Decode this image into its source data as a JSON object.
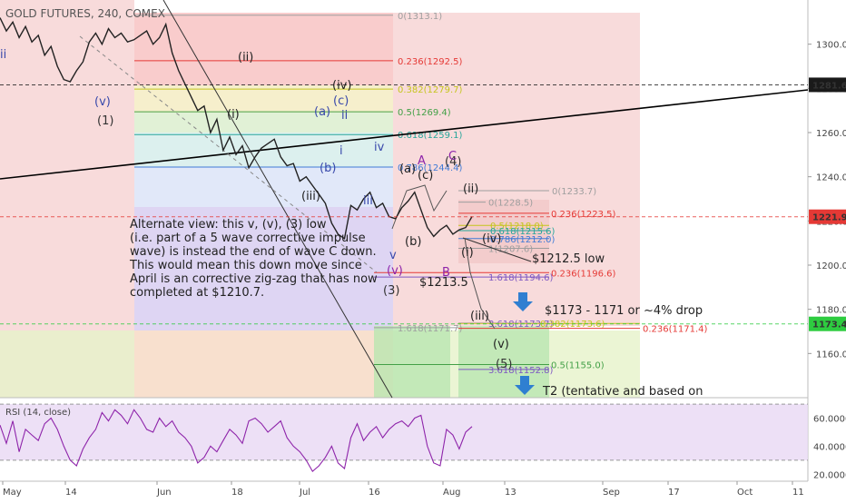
{
  "chart_data": {
    "type": "line",
    "title": "GOLD FUTURES, 240, COMEX",
    "price_axis": {
      "range": [
        1140,
        1320
      ],
      "ticks": [
        "1300.0",
        "1280.0",
        "1260.0",
        "1240.0",
        "1220.0",
        "1200.0",
        "1180.0",
        "1160.0"
      ],
      "tags": [
        {
          "value": "1281.6",
          "style": "dark"
        },
        {
          "value": "1221.9",
          "style": "red"
        },
        {
          "value": "1173.4",
          "style": "green"
        }
      ]
    },
    "time_axis": {
      "labels": [
        "May",
        "14",
        "Jun",
        "18",
        "Jul",
        "16",
        "Aug",
        "13",
        "Sep",
        "17",
        "Oct",
        "11"
      ]
    },
    "price_series": [
      1312,
      1306,
      1310,
      1303,
      1308,
      1301,
      1304,
      1295,
      1299,
      1290,
      1284,
      1283,
      1288,
      1292,
      1301,
      1305,
      1300,
      1307,
      1303,
      1305,
      1301,
      1302,
      1304,
      1306,
      1300,
      1303,
      1309,
      1296,
      1288,
      1282,
      1276,
      1270,
      1272,
      1260,
      1266,
      1252,
      1258,
      1250,
      1254,
      1244,
      1249,
      1253,
      1255,
      1257,
      1249,
      1245,
      1246,
      1238,
      1240,
      1236,
      1232,
      1228,
      1219,
      1214,
      1212,
      1227,
      1225,
      1230,
      1233,
      1226,
      1228,
      1222,
      1221,
      1226,
      1229,
      1233,
      1225,
      1217,
      1213,
      1216,
      1218,
      1214,
      1216,
      1217,
      1222
    ],
    "fib_levels": [
      {
        "label": "0(1313.1)",
        "value": 1313.1,
        "color": "#9e9e9e"
      },
      {
        "label": "0.236(1292.5)",
        "value": 1292.5,
        "color": "#e53935"
      },
      {
        "label": "0.382(1279.7)",
        "value": 1279.7,
        "color": "#c5c51d"
      },
      {
        "label": "0.5(1269.4)",
        "value": 1269.4,
        "color": "#43a047"
      },
      {
        "label": "0.618(1259.1)",
        "value": 1259.1,
        "color": "#26a69a"
      },
      {
        "label": "0.786(1244.4)",
        "value": 1244.4,
        "color": "#3f7ad6"
      },
      {
        "label": "0(1233.7)",
        "value": 1233.7,
        "color": "#9e9e9e"
      },
      {
        "label": "0(1228.5)",
        "value": 1228.5,
        "color": "#9e9e9e"
      },
      {
        "label": "0.236(1223.5)",
        "value": 1223.5,
        "color": "#e53935"
      },
      {
        "label": "0.5(1218.0)",
        "value": 1218.0,
        "color": "#c5c51d"
      },
      {
        "label": "0.618(1215.6)",
        "value": 1215.6,
        "color": "#26a69a"
      },
      {
        "label": "0.786(1212.0)",
        "value": 1212.0,
        "color": "#3f7ad6"
      },
      {
        "label": "1(1207.6)",
        "value": 1207.6,
        "color": "#9e9e9e"
      },
      {
        "label": "0.236(1196.6)",
        "value": 1196.6,
        "color": "#e53935"
      },
      {
        "label": "1.618(1194.6)",
        "value": 1194.6,
        "color": "#7e57c2"
      },
      {
        "label": "3.618(1173.7)",
        "value": 1173.7,
        "color": "#7e57c2"
      },
      {
        "label": "0.382(1173.6)",
        "value": 1173.6,
        "color": "#c5c51d"
      },
      {
        "label": "1.618(1171.7)",
        "value": 1171.7,
        "color": "#9e9e9e"
      },
      {
        "label": "0.236(1171.4)",
        "value": 1171.4,
        "color": "#e53935"
      },
      {
        "label": "0.5(1155.0)",
        "value": 1155.0,
        "color": "#43a047"
      },
      {
        "label": "3.618(1152.8)",
        "value": 1152.8,
        "color": "#7e57c2"
      }
    ],
    "wave_labels": [
      {
        "text": "ii",
        "color": "#3949ab"
      },
      {
        "text": "(v)",
        "color": "#3949ab"
      },
      {
        "text": "(1)",
        "color": "#333333"
      },
      {
        "text": "(ii)",
        "color": "#222222"
      },
      {
        "text": "(i)",
        "color": "#222222"
      },
      {
        "text": "(iv)",
        "color": "#222222"
      },
      {
        "text": "(c)",
        "color": "#3949ab"
      },
      {
        "text": "(a)",
        "color": "#3949ab"
      },
      {
        "text": "ii",
        "color": "#3949ab"
      },
      {
        "text": "(b)",
        "color": "#3949ab"
      },
      {
        "text": "i",
        "color": "#3949ab"
      },
      {
        "text": "iv",
        "color": "#3949ab"
      },
      {
        "text": "(iii)",
        "color": "#222222"
      },
      {
        "text": "iii",
        "color": "#3949ab"
      },
      {
        "text": "A",
        "color": "#8e24aa"
      },
      {
        "text": "(4)",
        "color": "#333333"
      },
      {
        "text": "(a)",
        "color": "#222222"
      },
      {
        "text": "(c)",
        "color": "#222222"
      },
      {
        "text": "C",
        "color": "#8e24aa"
      },
      {
        "text": "(ii)",
        "color": "#222222"
      },
      {
        "text": "(b)",
        "color": "#222222"
      },
      {
        "text": "v",
        "color": "#3949ab"
      },
      {
        "text": "(v)",
        "color": "#8e24aa"
      },
      {
        "text": "(3)",
        "color": "#333333"
      },
      {
        "text": "B",
        "color": "#8e24aa"
      },
      {
        "text": "(i)",
        "color": "#222222"
      },
      {
        "text": "(iv)",
        "color": "#222222"
      },
      {
        "text": "(iii)",
        "color": "#222222"
      },
      {
        "text": "(v)",
        "color": "#222222"
      },
      {
        "text": "(5)",
        "color": "#333333"
      }
    ],
    "annotations": [
      {
        "text": "$1212.5 low"
      },
      {
        "text": "$1213.5"
      },
      {
        "text": "$1173 - 1171 or ~4% drop"
      },
      {
        "text": "T2 (tentative and based on"
      }
    ],
    "note": [
      "Alternate view: this v, (v), (3) low",
      "(i.e. part of a 5 wave corrective impulse",
      "wave) is instead the end of wave C down.",
      "This would mean this down move since",
      "April is an corrective zig-zag that has now",
      "completed at $1210.7."
    ],
    "rsi": {
      "title": "RSI (14, close)",
      "range": [
        15,
        72
      ],
      "ticks": [
        "60.0000",
        "40.0000",
        "20.0000"
      ],
      "bands": [
        30,
        70
      ],
      "values": [
        55,
        42,
        58,
        36,
        52,
        48,
        44,
        56,
        60,
        52,
        40,
        30,
        26,
        38,
        46,
        52,
        64,
        58,
        66,
        62,
        56,
        66,
        60,
        52,
        50,
        60,
        54,
        58,
        50,
        46,
        40,
        28,
        32,
        40,
        36,
        44,
        52,
        48,
        42,
        58,
        60,
        56,
        50,
        54,
        58,
        46,
        40,
        36,
        30,
        22,
        26,
        32,
        40,
        28,
        24,
        46,
        56,
        44,
        50,
        54,
        46,
        52,
        56,
        58,
        54,
        60,
        62,
        40,
        28,
        26,
        52,
        48,
        38,
        50,
        54
      ],
      "colors": {
        "line": "#8e24aa",
        "band": "#e8d8f4"
      }
    },
    "colors": {
      "price_line": "#222222",
      "trend_line": "#000000",
      "projection_arrow": "#2f7fd1"
    }
  }
}
